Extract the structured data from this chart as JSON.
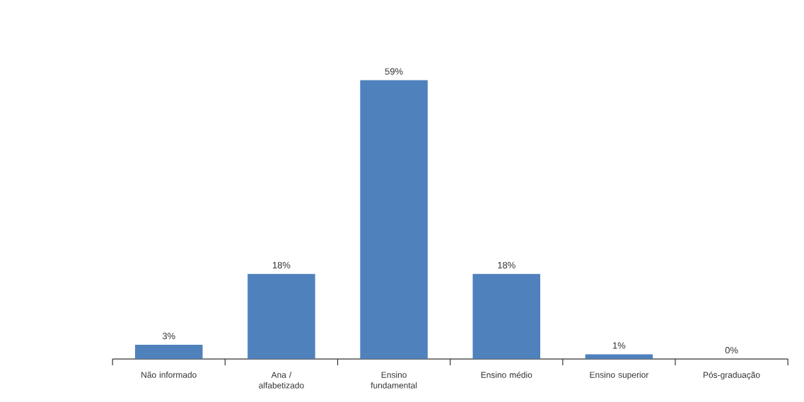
{
  "chart_data": {
    "type": "bar",
    "categories": [
      "Não informado",
      "Ana / alfabetizado",
      "Ensino fundamental",
      "Ensino médio",
      "Ensino superior",
      "Pós-graduação"
    ],
    "values": [
      3,
      18,
      59,
      18,
      1,
      0
    ],
    "value_labels": [
      "3%",
      "18%",
      "59%",
      "18%",
      "1%",
      "0%"
    ],
    "color": "#4f81bd"
  }
}
